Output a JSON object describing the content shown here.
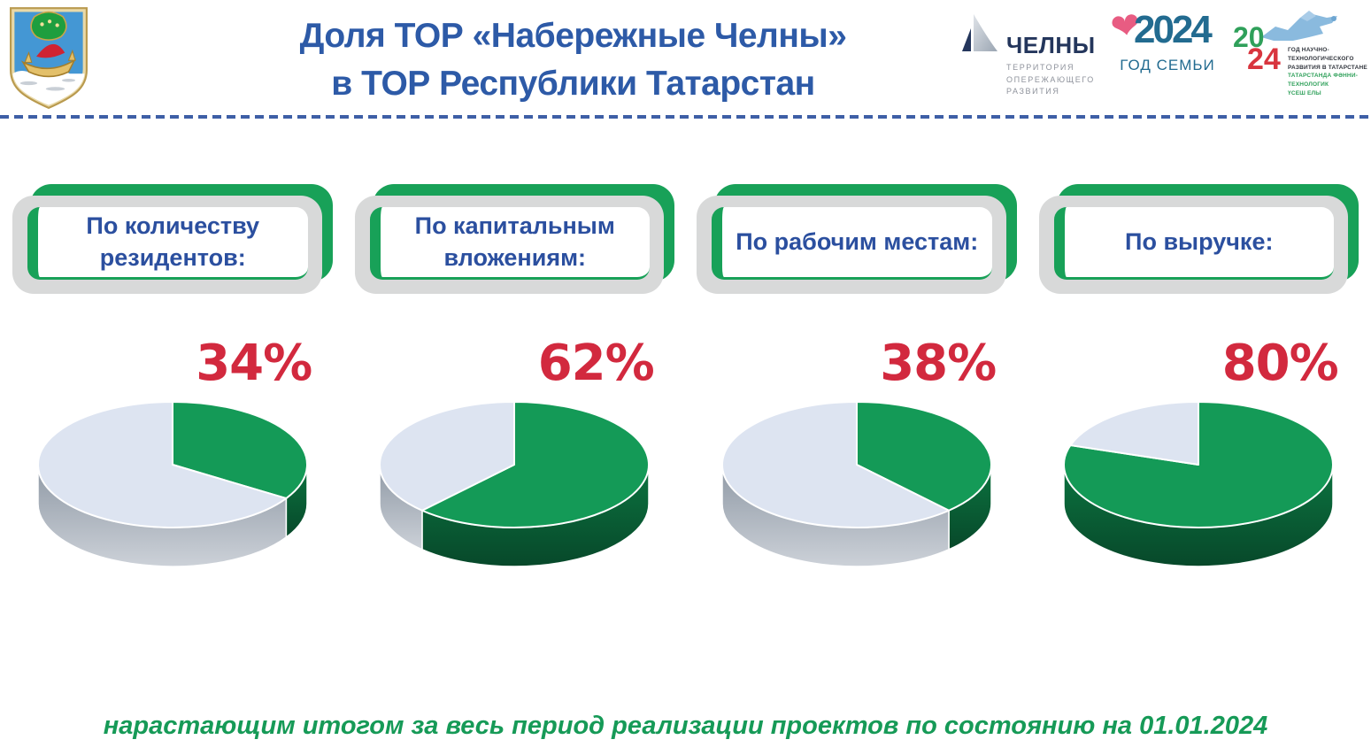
{
  "header": {
    "title_line1": "Доля ТОР «Набережные Челны»",
    "title_line2": "в ТОР Республики Татарстан"
  },
  "logos": {
    "chelny": {
      "title": "ЧЕЛНЫ",
      "subtitle_line1": "ТЕРРИТОРИЯ",
      "subtitle_line2": "ОПЕРЕЖАЮЩЕГО",
      "subtitle_line3": "РАЗВИТИЯ"
    },
    "year_of_family": {
      "year": "2024",
      "label": "ГОД СЕМЬИ"
    },
    "year_of_science": {
      "year_first": "20",
      "year_second": "24",
      "line1": "ГОД НАУЧНО-ТЕХНОЛОГИЧЕСКОГО",
      "line2": "РАЗВИТИЯ В ТАТАРСТАНЕ",
      "line3": "ТАТАРСТАНДА ФӘННИ-ТЕХНОЛОГИК",
      "line4": "ҮСЕШ ЕЛЫ"
    }
  },
  "chart_data": [
    {
      "type": "pie",
      "title": "По количеству резидентов:",
      "percent_label": "34%",
      "values": [
        34,
        66
      ],
      "slice_colors": [
        "#149a57",
        "#dde4f1"
      ],
      "legend": "off",
      "style": "3d"
    },
    {
      "type": "pie",
      "title": "По капитальным вложениям:",
      "percent_label": "62%",
      "values": [
        62,
        38
      ],
      "slice_colors": [
        "#149a57",
        "#dde4f1"
      ],
      "legend": "off",
      "style": "3d"
    },
    {
      "type": "pie",
      "title": "По рабочим местам:",
      "percent_label": "38%",
      "values": [
        38,
        62
      ],
      "slice_colors": [
        "#149a57",
        "#dde4f1"
      ],
      "legend": "off",
      "style": "3d"
    },
    {
      "type": "pie",
      "title": "По выручке:",
      "percent_label": "80%",
      "values": [
        80,
        20
      ],
      "slice_colors": [
        "#149a57",
        "#dde4f1"
      ],
      "legend": "off",
      "style": "3d"
    }
  ],
  "footer": {
    "note": "нарастающим итогом за весь период реализации проектов по состоянию на 01.01.2024"
  },
  "colors": {
    "title_blue": "#2d5aa7",
    "card_text_blue": "#2b4f9f",
    "accent_green": "#18a158",
    "card_gray": "#d8d9d9",
    "percent_red": "#d2293e",
    "pie_green": "#149a57",
    "pie_light_slice": "#dde4f1",
    "footer_green": "#169a57",
    "dashed_line_blue": "#3e5fa6",
    "family_logo_teal": "#226b90",
    "heart_pink": "#e85c82",
    "science_green": "#2fa05a",
    "science_red": "#d8353e"
  }
}
